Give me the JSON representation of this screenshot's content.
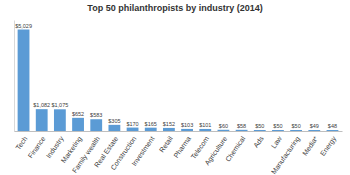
{
  "chart_data": {
    "type": "bar",
    "title": "Top 50 philanthropists by industry (2014)",
    "categories": [
      "Tech",
      "Finance",
      "Industry",
      "Marketing",
      "Family wealth",
      "Real Estate",
      "Construction",
      "Investment",
      "Retail",
      "Pharma",
      "Telecom",
      "Agriculture",
      "Chemical",
      "Ads",
      "Law",
      "Manufacturing",
      "Media*",
      "Energy"
    ],
    "values": [
      5029,
      1082,
      1075,
      652,
      583,
      305,
      170,
      165,
      152,
      103,
      101,
      60,
      58,
      50,
      50,
      50,
      49,
      48
    ],
    "value_labels": [
      "$5,029",
      "$1,082",
      "$1,075",
      "$652",
      "$583",
      "$305",
      "$170",
      "$165",
      "$152",
      "$103",
      "$101",
      "$60",
      "$58",
      "$50",
      "$50",
      "$50",
      "$49",
      "$48"
    ],
    "color": "#5b9bd5",
    "ylim": [
      0,
      5500
    ],
    "yticks": [],
    "data_labels": true,
    "tick_labels": "x",
    "grid": false
  }
}
